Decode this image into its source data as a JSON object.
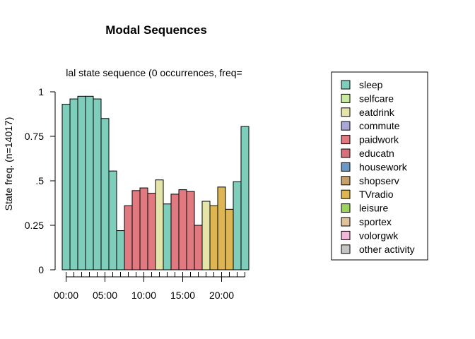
{
  "chart_data": {
    "type": "bar",
    "title": "Modal Sequences",
    "subtitle": "lal state sequence (0 occurrences, freq=",
    "ylabel": "State freq. (n=14017)",
    "xlabel": "",
    "ylim": [
      0,
      1
    ],
    "y_ticks": [
      {
        "value": 0,
        "label": "0"
      },
      {
        "value": 0.25,
        "label": "0.25"
      },
      {
        "value": 0.5,
        "label": ".5"
      },
      {
        "value": 0.75,
        "label": "0.75"
      },
      {
        "value": 1,
        "label": "1"
      }
    ],
    "x_ticks": [
      {
        "hour": 0,
        "label": "00:00"
      },
      {
        "hour": 5,
        "label": "05:00"
      },
      {
        "hour": 10,
        "label": "10:00"
      },
      {
        "hour": 15,
        "label": "15:00"
      },
      {
        "hour": 20,
        "label": "20:00"
      }
    ],
    "hours": [
      0,
      1,
      2,
      3,
      4,
      5,
      6,
      7,
      8,
      9,
      10,
      11,
      12,
      13,
      14,
      15,
      16,
      17,
      18,
      19,
      20,
      21,
      22,
      23
    ],
    "bars": [
      {
        "state": "sleep",
        "value": 0.93
      },
      {
        "state": "sleep",
        "value": 0.96
      },
      {
        "state": "sleep",
        "value": 0.975
      },
      {
        "state": "sleep",
        "value": 0.975
      },
      {
        "state": "sleep",
        "value": 0.96
      },
      {
        "state": "sleep",
        "value": 0.85
      },
      {
        "state": "sleep",
        "value": 0.555
      },
      {
        "state": "sleep",
        "value": 0.22
      },
      {
        "state": "paidwork",
        "value": 0.36
      },
      {
        "state": "paidwork",
        "value": 0.445
      },
      {
        "state": "paidwork",
        "value": 0.46
      },
      {
        "state": "paidwork",
        "value": 0.43
      },
      {
        "state": "eatdrink",
        "value": 0.505
      },
      {
        "state": "sleep",
        "value": 0.37
      },
      {
        "state": "paidwork",
        "value": 0.425
      },
      {
        "state": "paidwork",
        "value": 0.45
      },
      {
        "state": "paidwork",
        "value": 0.44
      },
      {
        "state": "paidwork",
        "value": 0.25
      },
      {
        "state": "eatdrink",
        "value": 0.385
      },
      {
        "state": "TVradio",
        "value": 0.36
      },
      {
        "state": "TVradio",
        "value": 0.465
      },
      {
        "state": "TVradio",
        "value": 0.34
      },
      {
        "state": "sleep",
        "value": 0.495
      },
      {
        "state": "sleep",
        "value": 0.805
      }
    ],
    "legend_position": "right",
    "legend": [
      {
        "label": "sleep",
        "color": "#7fcdbb"
      },
      {
        "label": "selfcare",
        "color": "#c7e9a0"
      },
      {
        "label": "eatdrink",
        "color": "#e5e5aa"
      },
      {
        "label": "commute",
        "color": "#aaa8d6"
      },
      {
        "label": "paidwork",
        "color": "#e07a80"
      },
      {
        "label": "educatn",
        "color": "#d6707a"
      },
      {
        "label": "housework",
        "color": "#6a98c8"
      },
      {
        "label": "shopserv",
        "color": "#c8a06c"
      },
      {
        "label": "TVradio",
        "color": "#ddb552"
      },
      {
        "label": "leisure",
        "color": "#9bd45c"
      },
      {
        "label": "sportex",
        "color": "#e0c29c"
      },
      {
        "label": "volorgwk",
        "color": "#f0b8d8"
      },
      {
        "label": "other activity",
        "color": "#c4c4c4"
      }
    ]
  }
}
